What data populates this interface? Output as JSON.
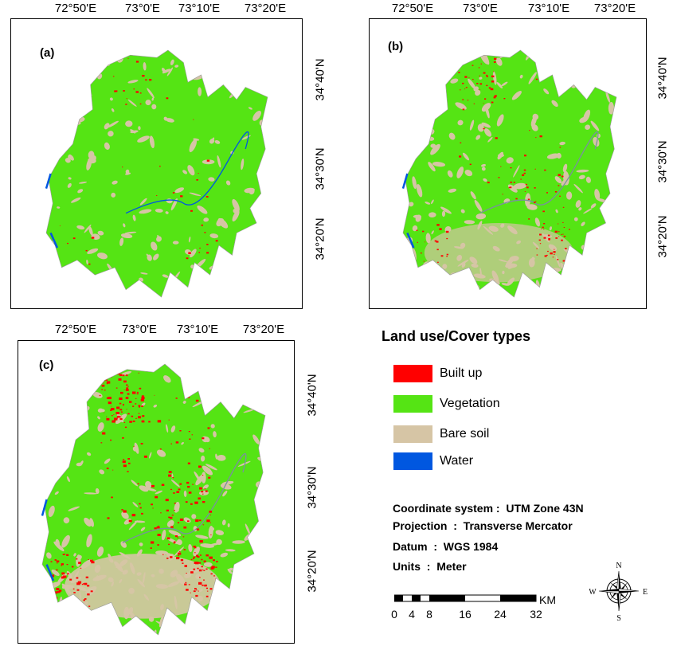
{
  "panels": [
    {
      "letter": "(a)",
      "lon_ticks": [
        "72°50'E",
        "73°0'E",
        "73°10'E",
        "73°20'E"
      ],
      "lat_ticks": [
        "34°40'N",
        "34°30'N",
        "34°20'N"
      ],
      "built_up_level": "low"
    },
    {
      "letter": "(b)",
      "lon_ticks": [
        "72°50'E",
        "73°0'E",
        "73°10'E",
        "73°20'E"
      ],
      "lat_ticks": [
        "34°40'N",
        "34°30'N",
        "34°20'N"
      ],
      "built_up_level": "medium"
    },
    {
      "letter": "(c)",
      "lon_ticks": [
        "72°50'E",
        "73°0'E",
        "73°10'E",
        "73°20'E"
      ],
      "lat_ticks": [
        "34°40'N",
        "34°30'N",
        "34°20'N"
      ],
      "built_up_level": "high"
    }
  ],
  "legend": {
    "title": "Land use/Cover types",
    "items": [
      {
        "label": "Built up",
        "color": "#ff0000"
      },
      {
        "label": "Vegetation",
        "color": "#55e414"
      },
      {
        "label": "Bare soil",
        "color": "#d6c5a5"
      },
      {
        "label": "Water",
        "color": "#0057e0"
      }
    ]
  },
  "map_info": {
    "coordinate_system": "Coordinate system :  UTM Zone 43N",
    "projection": "Projection  :  Transverse Mercator",
    "datum": "Datum  :  WGS 1984",
    "units": "Units  :  Meter"
  },
  "scale_bar": {
    "labels": [
      "0",
      "4",
      "8",
      "16",
      "24",
      "32"
    ],
    "unit": "KM"
  },
  "compass": {
    "n": "N",
    "s": "S",
    "e": "E",
    "w": "W"
  }
}
